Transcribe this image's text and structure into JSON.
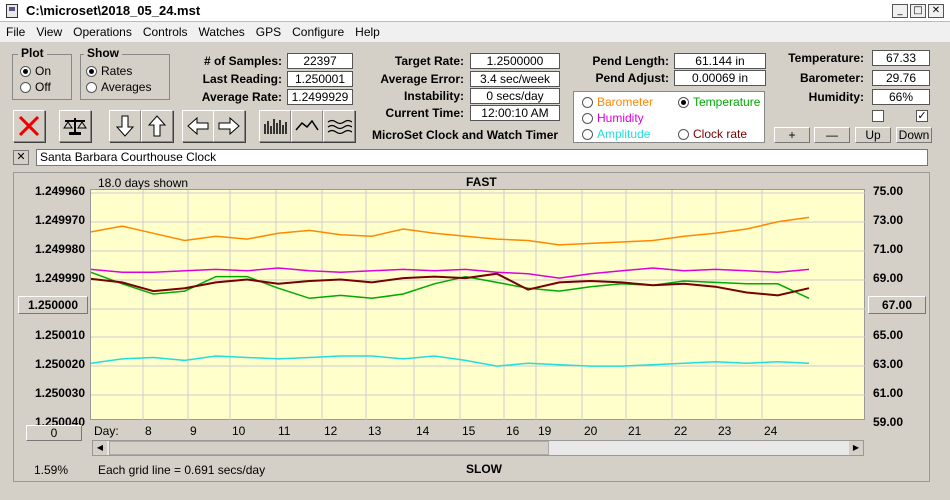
{
  "window": {
    "title": "C:\\microset\\2018_05_24.mst"
  },
  "menu": [
    "File",
    "View",
    "Operations",
    "Controls",
    "Watches",
    "GPS",
    "Configure",
    "Help"
  ],
  "plot_group": {
    "label": "Plot",
    "on": "On",
    "off": "Off",
    "selected": "On"
  },
  "show_group": {
    "label": "Show",
    "rates": "Rates",
    "averages": "Averages",
    "selected": "Rates"
  },
  "stats": {
    "samples_label": "# of Samples:",
    "samples": "22397",
    "last_label": "Last Reading:",
    "last": "1.250001",
    "avg_label": "Average Rate:",
    "avg": "1.2499929",
    "target_label": "Target Rate:",
    "target": "1.2500000",
    "avgerr_label": "Average Error:",
    "avgerr": "3.4 sec/week",
    "instab_label": "Instability:",
    "instab": "0 secs/day",
    "time_label": "Current Time:",
    "time": "12:00:10 AM",
    "pendlen_label": "Pend Length:",
    "pendlen": "61.144 in",
    "pendadj_label": "Pend Adjust:",
    "pendadj": "0.00069 in",
    "temp_label": "Temperature:",
    "temp": "67.33",
    "baro_label": "Barometer:",
    "baro": "29.76",
    "hum_label": "Humidity:",
    "hum": "66%"
  },
  "app_name": "MicroSet Clock and Watch Timer",
  "sensor_select": {
    "barometer": "Barometer",
    "temperature": "Temperature",
    "humidity": "Humidity",
    "amplitude": "Amplitude",
    "clockrate": "Clock rate",
    "selected": "Temperature"
  },
  "adjust_buttons": {
    "plus": "+",
    "minus": "—",
    "up": "Up",
    "down": "Down"
  },
  "clock_name": "Santa Barbara Courthouse Clock",
  "chart_labels": {
    "days_shown": "18.0 days shown",
    "top": "FAST",
    "bottom": "SLOW",
    "grid_note": "Each grid line = 0.691 secs/day",
    "percent": "1.59%",
    "day_label": "Day:",
    "left_current": "1.250000",
    "right_current": "67.00",
    "left_button": "0"
  },
  "colors": {
    "barometer": "#ff8800",
    "temperature": "#00aa00",
    "humidity": "#dd00dd",
    "amplitude": "#22dddd",
    "clockrate": "#770000"
  },
  "chart_data": {
    "type": "line",
    "left_axis_ticks": [
      "1.249960",
      "1.249970",
      "1.249980",
      "1.249990",
      "1.250000",
      "1.250010",
      "1.250020",
      "1.250030",
      "1.250040"
    ],
    "right_axis_ticks": [
      "75.00",
      "73.00",
      "71.00",
      "69.00",
      "67.00",
      "65.00",
      "63.00",
      "61.00",
      "59.00"
    ],
    "x_ticks": [
      "8",
      "9",
      "10",
      "11",
      "12",
      "13",
      "14",
      "15",
      "16",
      "19",
      "20",
      "21",
      "22",
      "23",
      "24"
    ],
    "series": [
      {
        "key": "barometer",
        "values": [
          72.1,
          72.5,
          72.0,
          71.5,
          71.8,
          71.6,
          72.0,
          72.2,
          71.9,
          71.8,
          72.3,
          72.0,
          71.8,
          71.6,
          71.5,
          71.2,
          71.3,
          71.4,
          71.5,
          71.8,
          72.0,
          72.3,
          72.8,
          73.1
        ]
      },
      {
        "key": "humidity",
        "values": [
          69.5,
          69.3,
          69.3,
          69.4,
          69.5,
          69.4,
          69.6,
          69.4,
          69.3,
          69.4,
          69.5,
          69.4,
          69.5,
          69.3,
          69.2,
          68.9,
          69.2,
          69.4,
          69.6,
          69.4,
          69.5,
          69.4,
          69.3,
          69.5
        ]
      },
      {
        "key": "temperature",
        "values": [
          69.3,
          68.5,
          67.8,
          68.0,
          69.0,
          69.0,
          68.2,
          67.5,
          67.7,
          67.5,
          67.8,
          68.5,
          69.0,
          68.6,
          68.2,
          68.0,
          68.3,
          68.5,
          68.4,
          68.7,
          68.6,
          68.5,
          68.5,
          67.5
        ]
      },
      {
        "key": "amplitude",
        "values": [
          63.0,
          63.3,
          63.4,
          63.2,
          63.5,
          63.4,
          63.3,
          63.4,
          63.5,
          63.5,
          63.3,
          63.5,
          63.2,
          62.8,
          63.0,
          62.9,
          62.8,
          62.8,
          62.9,
          63.0,
          63.1,
          63.0,
          63.1,
          63.0
        ]
      },
      {
        "key": "clockrate",
        "values": [
          1.2499908,
          1.249992,
          1.249995,
          1.249994,
          1.249992,
          1.249991,
          1.2499925,
          1.2499915,
          1.249991,
          1.249992,
          1.2499905,
          1.24999,
          1.2499905,
          1.249989,
          1.2499945,
          1.249992,
          1.2499915,
          1.249992,
          1.249993,
          1.2499925,
          1.2499935,
          1.2499955,
          1.2499965,
          1.249994
        ]
      }
    ]
  }
}
